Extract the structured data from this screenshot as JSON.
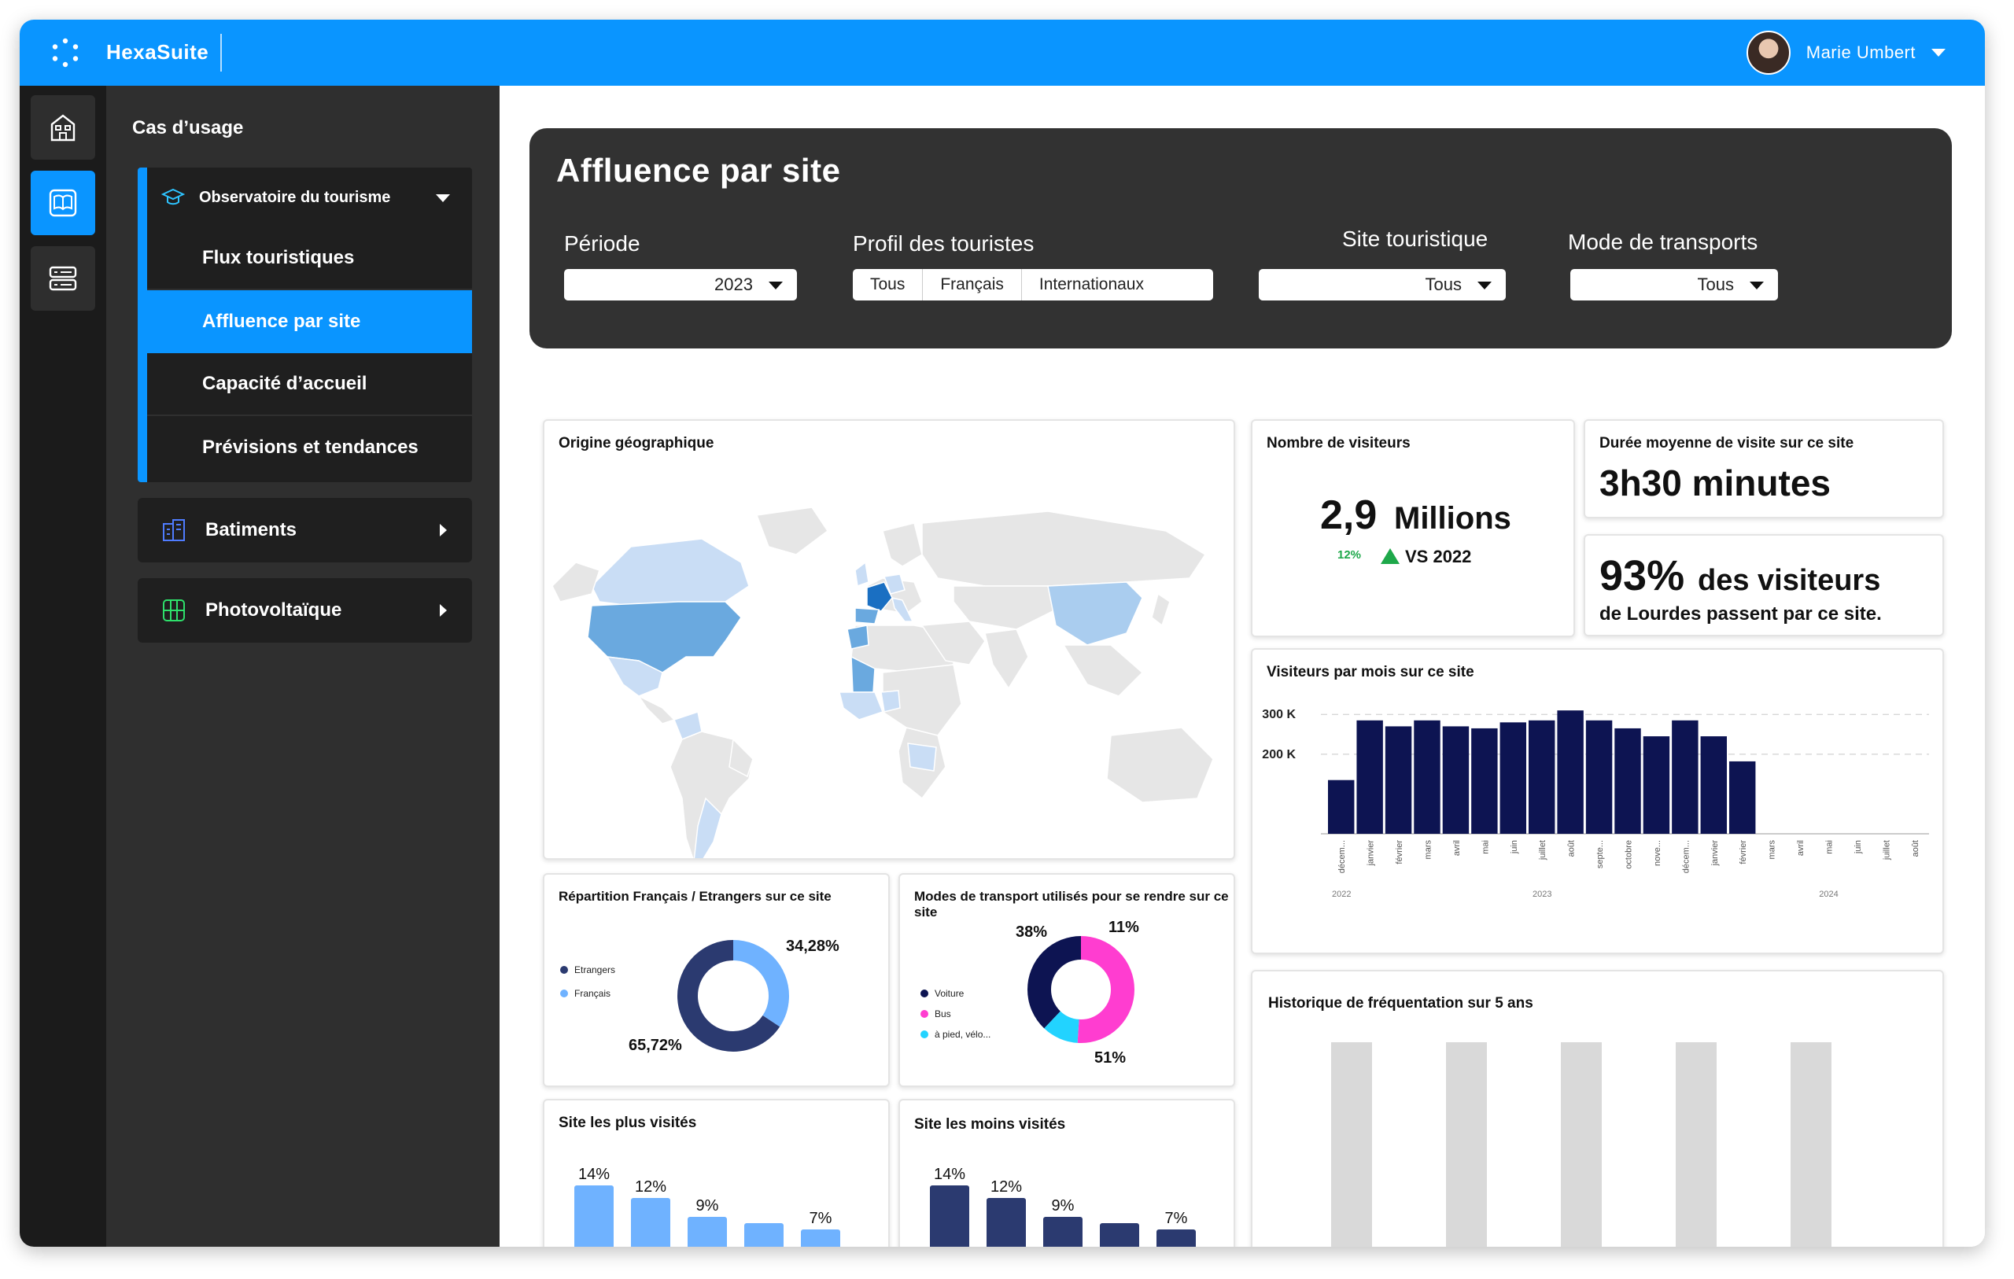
{
  "app": {
    "brand": "HexaSuite",
    "user_name": "Marie Umbert",
    "accent": "#0a95ff"
  },
  "nav": {
    "title": "Cas d’usage",
    "group": {
      "label": "Observatoire du tourisme",
      "items": [
        {
          "label": "Flux touristiques"
        },
        {
          "label": "Affluence par site"
        },
        {
          "label": "Capacité d’accueil"
        },
        {
          "label": "Prévisions et tendances"
        }
      ]
    },
    "sections": [
      {
        "label": "Batiments"
      },
      {
        "label": "Photovoltaïque"
      }
    ]
  },
  "filters": {
    "title": "Affluence par site",
    "periode": {
      "label": "Période",
      "value": "2023"
    },
    "profil": {
      "label": "Profil des touristes",
      "options": [
        "Tous",
        "Français",
        "Internationaux"
      ]
    },
    "site": {
      "label": "Site touristique",
      "value": "Tous"
    },
    "transport": {
      "label": "Mode de transports",
      "value": "Tous"
    }
  },
  "cards": {
    "origine": {
      "title": "Origine géographique"
    },
    "visiteurs": {
      "title": "Nombre de visiteurs",
      "value": "2,9",
      "unit": "Millions",
      "delta": "12%",
      "compare": "VS 2022"
    },
    "duree": {
      "title": "Durée moyenne de visite sur ce site",
      "value": "3h30 minutes"
    },
    "pct": {
      "value": "93%",
      "text1": "des visiteurs",
      "text2": "de Lourdes passent par ce site."
    },
    "mois": {
      "title": "Visiteurs par mois sur ce site"
    },
    "repartition": {
      "title": "Répartition Français / Etrangers sur ce site"
    },
    "modes": {
      "title": "Modes de transport utilisés pour se rendre sur ce site"
    },
    "historique": {
      "title": "Historique de fréquentation sur 5 ans"
    },
    "plus": {
      "title": "Site les plus visités"
    },
    "moins": {
      "title": "Site les moins visités"
    }
  },
  "chart_data": [
    {
      "type": "bar",
      "title": "Visiteurs par mois sur ce site",
      "y_ticks": [
        "300 K",
        "200 K"
      ],
      "ylim": [
        0,
        340000
      ],
      "categories": [
        "décem...",
        "janvier",
        "février",
        "mars",
        "avril",
        "mai",
        "juin",
        "juillet",
        "août",
        "septe...",
        "octobre",
        "nove...",
        "décem...",
        "janvier",
        "février",
        "mars",
        "avril",
        "mai",
        "juin",
        "juillet",
        "août"
      ],
      "values": [
        135000,
        285000,
        270000,
        285000,
        270000,
        265000,
        280000,
        285000,
        310000,
        285000,
        265000,
        245000,
        285000,
        245000,
        182000,
        null,
        null,
        null,
        null,
        null,
        null
      ],
      "year_labels": [
        "2022",
        "2023",
        "2024"
      ],
      "color": "#0d1452",
      "grid": true
    },
    {
      "type": "pie",
      "title": "Répartition Français / Etrangers sur ce site",
      "labels": [
        "Etrangers",
        "Français"
      ],
      "values": [
        65.72,
        34.28
      ],
      "value_labels": [
        "65,72%",
        "34,28%"
      ],
      "colors": [
        "#2b3a70",
        "#6fb2ff"
      ]
    },
    {
      "type": "pie",
      "title": "Modes de transport utilisés pour se rendre sur ce site",
      "labels": [
        "Voiture",
        "Bus",
        "à pied, vélo..."
      ],
      "values": [
        38,
        51,
        11
      ],
      "value_labels": [
        "38%",
        "51%",
        "11%"
      ],
      "colors": [
        "#0d1452",
        "#ff3dd0",
        "#22d3ff"
      ]
    },
    {
      "type": "bar",
      "title": "Site les plus visités",
      "values": [
        14,
        12,
        9,
        8,
        7
      ],
      "value_labels": [
        "14%",
        "12%",
        "9%",
        "",
        "7%"
      ],
      "color": "#6fb2ff"
    },
    {
      "type": "bar",
      "title": "Site les moins visités",
      "values": [
        14,
        12,
        9,
        8,
        7
      ],
      "value_labels": [
        "14%",
        "12%",
        "9%",
        "",
        "7%"
      ],
      "color": "#2b3a70"
    },
    {
      "type": "bar",
      "title": "Historique de fréquentation sur 5 ans",
      "values": [
        1,
        1,
        1,
        1,
        1
      ],
      "color": "#d9d9d9"
    }
  ]
}
